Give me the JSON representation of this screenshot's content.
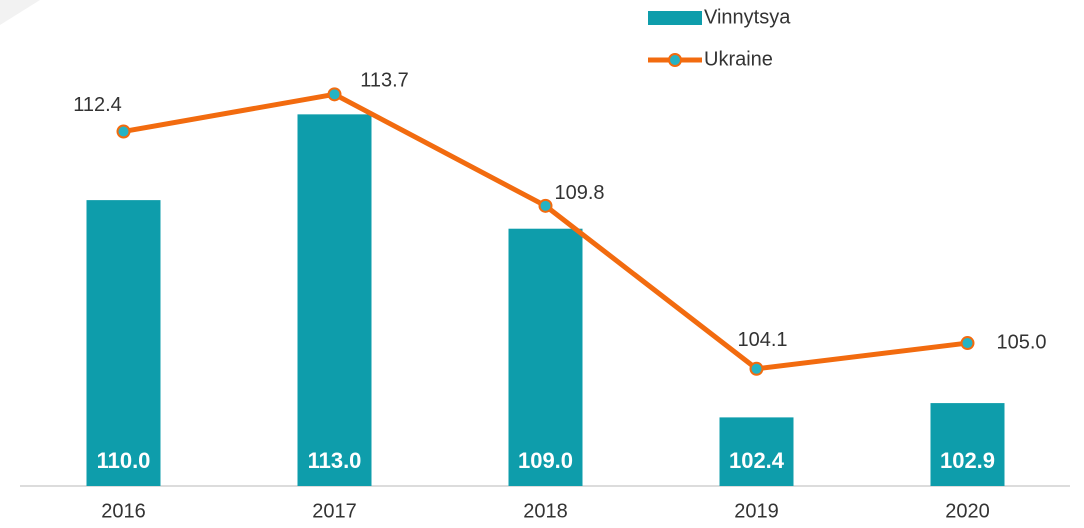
{
  "chart_data": {
    "type": "bar-line",
    "categories": [
      "2016",
      "2017",
      "2018",
      "2019",
      "2020"
    ],
    "series": [
      {
        "name": "Vinnytsya",
        "type": "bar",
        "color": "#0e9dab",
        "values": [
          110.0,
          113.0,
          109.0,
          102.4,
          102.9
        ],
        "value_labels": [
          "110.0",
          "113.0",
          "109.0",
          "102.4",
          "102.9"
        ]
      },
      {
        "name": "Ukraine",
        "type": "line",
        "color": "#f26b0f",
        "marker_color": "#25b3c4",
        "values": [
          112.4,
          113.7,
          109.8,
          104.1,
          105.0
        ],
        "value_labels": [
          "112.4",
          "113.7",
          "109.8",
          "104.1",
          "105.0"
        ]
      }
    ],
    "ylim": [
      100,
      117
    ],
    "legend": "top-right"
  }
}
